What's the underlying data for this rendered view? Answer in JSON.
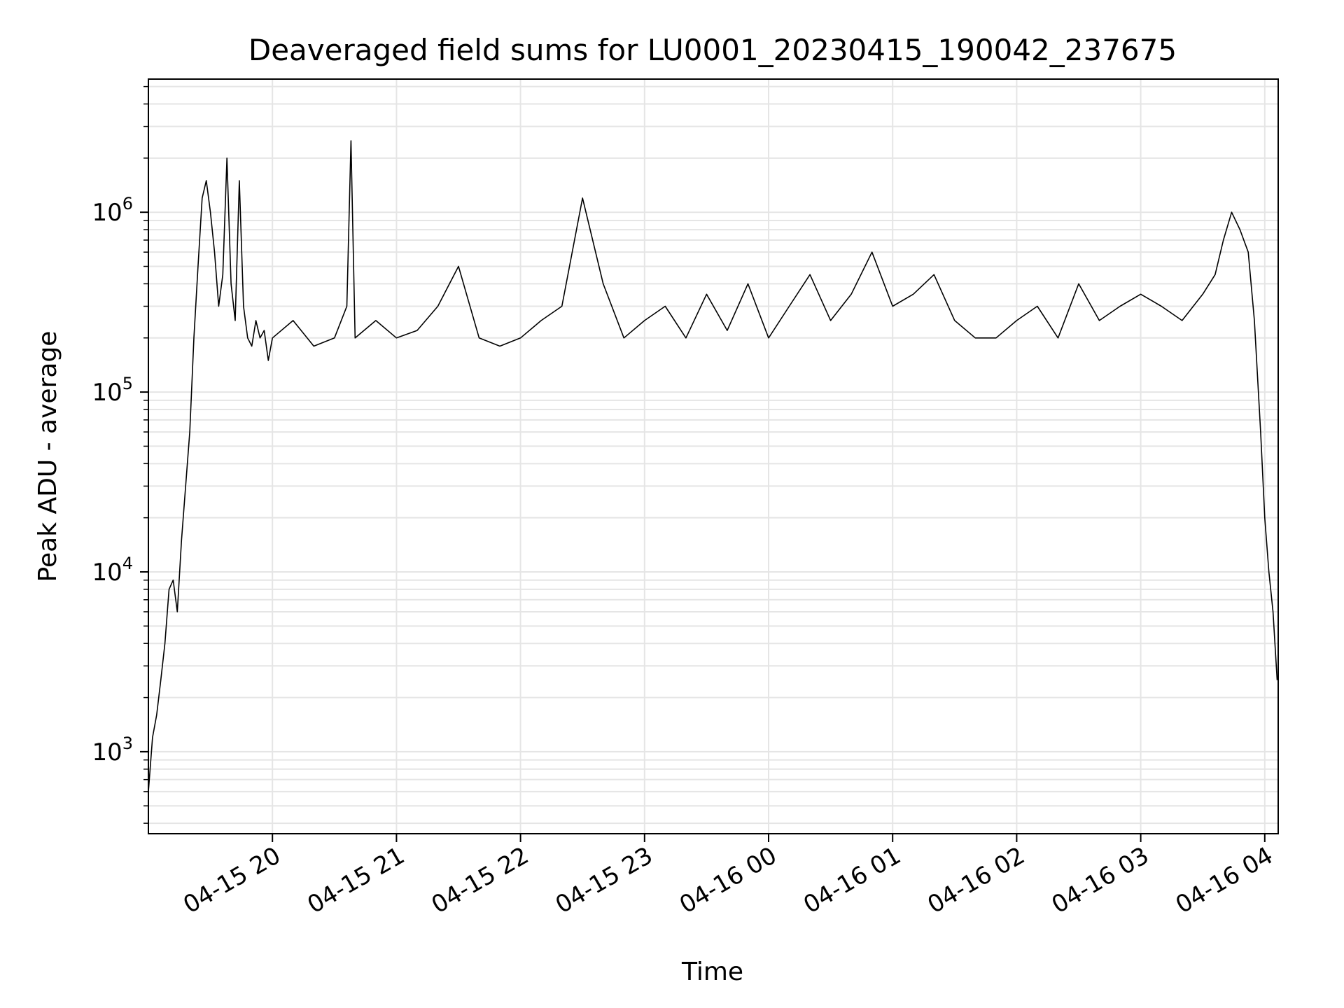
{
  "chart_data": {
    "type": "line",
    "title": "Deaveraged field sums for LU0001_20230415_190042_237675",
    "xlabel": "Time",
    "ylabel": "Peak ADU - average",
    "yscale": "log",
    "ylim": [
      350,
      5500000
    ],
    "xlim": [
      "2023-04-15 19:00:00",
      "2023-04-16 04:06:30"
    ],
    "x_tick_labels": [
      {
        "t": "2023-04-15 20:00",
        "label": "04-15 20"
      },
      {
        "t": "2023-04-15 21:00",
        "label": "04-15 21"
      },
      {
        "t": "2023-04-15 22:00",
        "label": "04-15 22"
      },
      {
        "t": "2023-04-15 23:00",
        "label": "04-15 23"
      },
      {
        "t": "2023-04-16 00:00",
        "label": "04-16 00"
      },
      {
        "t": "2023-04-16 01:00",
        "label": "04-16 01"
      },
      {
        "t": "2023-04-16 02:00",
        "label": "04-16 02"
      },
      {
        "t": "2023-04-16 03:00",
        "label": "04-16 03"
      },
      {
        "t": "2023-04-16 04:00",
        "label": "04-16 04"
      }
    ],
    "y_tick_labels": [
      {
        "value": 1000,
        "base": "10",
        "exp": "3"
      },
      {
        "value": 10000,
        "base": "10",
        "exp": "4"
      },
      {
        "value": 100000,
        "base": "10",
        "exp": "5"
      },
      {
        "value": 1000000,
        "base": "10",
        "exp": "6"
      }
    ],
    "grid": true,
    "line_color": "#000000",
    "grid_color": "#e5e5e5",
    "series": [
      {
        "x": [
          "2023-04-15 19:00",
          "2023-04-15 19:02",
          "2023-04-15 19:04",
          "2023-04-15 19:06",
          "2023-04-15 19:08",
          "2023-04-15 19:10",
          "2023-04-15 19:12",
          "2023-04-15 19:14",
          "2023-04-15 19:16",
          "2023-04-15 19:18",
          "2023-04-15 19:20",
          "2023-04-15 19:22",
          "2023-04-15 19:24",
          "2023-04-15 19:26",
          "2023-04-15 19:28",
          "2023-04-15 19:30",
          "2023-04-15 19:32",
          "2023-04-15 19:34",
          "2023-04-15 19:36",
          "2023-04-15 19:38",
          "2023-04-15 19:40",
          "2023-04-15 19:42",
          "2023-04-15 19:44",
          "2023-04-15 19:46",
          "2023-04-15 19:48",
          "2023-04-15 19:50",
          "2023-04-15 19:52",
          "2023-04-15 19:54",
          "2023-04-15 19:56",
          "2023-04-15 19:58",
          "2023-04-15 20:00",
          "2023-04-15 20:10",
          "2023-04-15 20:20",
          "2023-04-15 20:30",
          "2023-04-15 20:36",
          "2023-04-15 20:38",
          "2023-04-15 20:40",
          "2023-04-15 20:50",
          "2023-04-15 21:00",
          "2023-04-15 21:10",
          "2023-04-15 21:20",
          "2023-04-15 21:30",
          "2023-04-15 21:40",
          "2023-04-15 21:50",
          "2023-04-15 22:00",
          "2023-04-15 22:10",
          "2023-04-15 22:20",
          "2023-04-15 22:30",
          "2023-04-15 22:40",
          "2023-04-15 22:50",
          "2023-04-15 23:00",
          "2023-04-15 23:10",
          "2023-04-15 23:20",
          "2023-04-15 23:30",
          "2023-04-15 23:40",
          "2023-04-15 23:50",
          "2023-04-16 00:00",
          "2023-04-16 00:10",
          "2023-04-16 00:20",
          "2023-04-16 00:30",
          "2023-04-16 00:40",
          "2023-04-16 00:50",
          "2023-04-16 01:00",
          "2023-04-16 01:10",
          "2023-04-16 01:20",
          "2023-04-16 01:30",
          "2023-04-16 01:40",
          "2023-04-16 01:50",
          "2023-04-16 02:00",
          "2023-04-16 02:10",
          "2023-04-16 02:20",
          "2023-04-16 02:30",
          "2023-04-16 02:40",
          "2023-04-16 02:50",
          "2023-04-16 03:00",
          "2023-04-16 03:10",
          "2023-04-16 03:20",
          "2023-04-16 03:30",
          "2023-04-16 03:36",
          "2023-04-16 03:40",
          "2023-04-16 03:44",
          "2023-04-16 03:48",
          "2023-04-16 03:52",
          "2023-04-16 03:55",
          "2023-04-16 03:58",
          "2023-04-16 04:00",
          "2023-04-16 04:02",
          "2023-04-16 04:04",
          "2023-04-16 04:06"
        ],
        "y": [
          600,
          1200,
          1600,
          2500,
          4000,
          8000,
          9000,
          6000,
          15000,
          30000,
          60000,
          200000,
          500000,
          1200000,
          1500000,
          1000000,
          600000,
          300000,
          450000,
          2000000,
          400000,
          250000,
          1500000,
          300000,
          200000,
          180000,
          250000,
          200000,
          220000,
          150000,
          200000,
          250000,
          180000,
          200000,
          300000,
          2500000,
          200000,
          250000,
          200000,
          220000,
          300000,
          500000,
          200000,
          180000,
          200000,
          250000,
          300000,
          1200000,
          400000,
          200000,
          250000,
          300000,
          200000,
          350000,
          220000,
          400000,
          200000,
          300000,
          450000,
          250000,
          350000,
          600000,
          300000,
          350000,
          450000,
          250000,
          200000,
          200000,
          250000,
          300000,
          200000,
          400000,
          250000,
          300000,
          350000,
          300000,
          250000,
          350000,
          450000,
          700000,
          1000000,
          800000,
          600000,
          250000,
          60000,
          20000,
          10000,
          6000,
          2500
        ]
      }
    ]
  }
}
